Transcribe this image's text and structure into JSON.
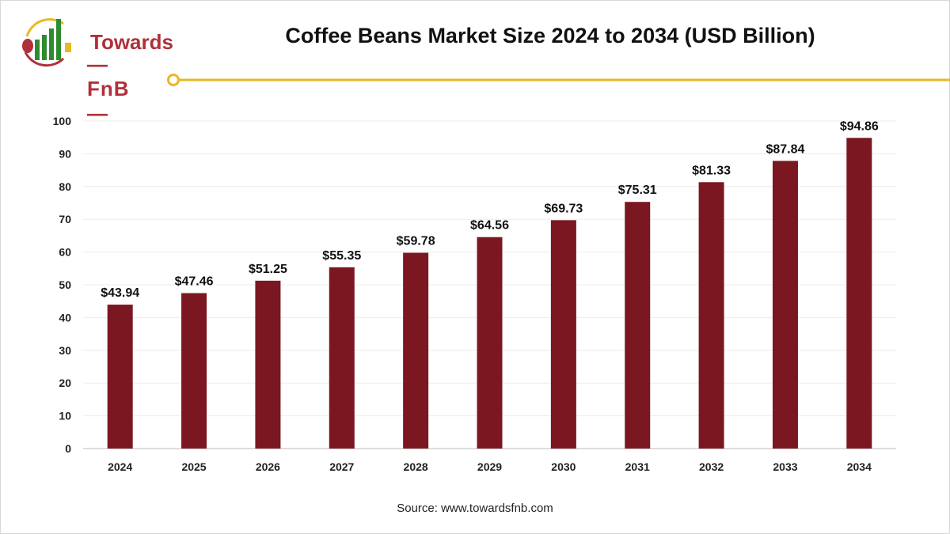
{
  "logo": {
    "line1": "Towards",
    "line2": "FnB"
  },
  "chart_data": {
    "type": "bar",
    "title": "Coffee Beans Market Size 2024 to 2034 (USD Billion)",
    "categories": [
      "2024",
      "2025",
      "2026",
      "2027",
      "2028",
      "2029",
      "2030",
      "2031",
      "2032",
      "2033",
      "2034"
    ],
    "values": [
      43.94,
      47.46,
      51.25,
      55.35,
      59.78,
      64.56,
      69.73,
      75.31,
      81.33,
      87.84,
      94.86
    ],
    "data_labels": [
      "$43.94",
      "$47.46",
      "$51.25",
      "$55.35",
      "$59.78",
      "$64.56",
      "$69.73",
      "$75.31",
      "$81.33",
      "$87.84",
      "$94.86"
    ],
    "xlabel": "",
    "ylabel": "",
    "ylim": [
      0,
      100
    ],
    "yticks": [
      0,
      10,
      20,
      30,
      40,
      50,
      60,
      70,
      80,
      90,
      100
    ],
    "grid": true,
    "bar_color": "#7b1721",
    "accent_color": "#e8b923"
  },
  "source": "Source: www.towardsfnb.com"
}
